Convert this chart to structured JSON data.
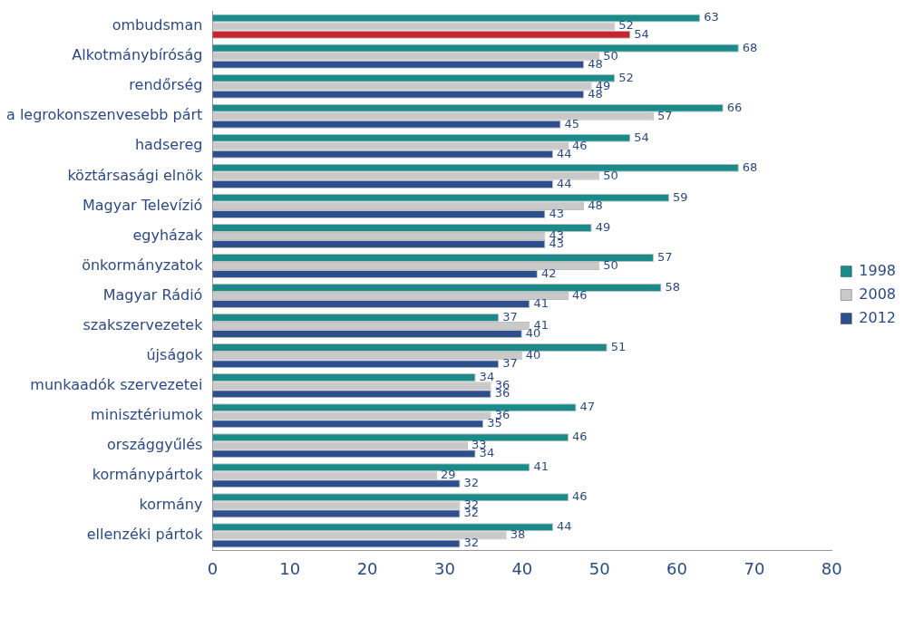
{
  "chart_data": {
    "type": "bar",
    "orientation": "horizontal",
    "categories": [
      "ombudsman",
      "Alkotmánybíróság",
      "rendőrség",
      "a legrokonszenvesebb párt",
      "hadsereg",
      "köztársasági elnök",
      "Magyar Televízió",
      "egyházak",
      "önkormányzatok",
      "Magyar Rádió",
      "szakszervezetek",
      "újságok",
      "munkaadók szervezetei",
      "minisztériumok",
      "országgyűlés",
      "kormánypártok",
      "kormány",
      "ellenzéki pártok"
    ],
    "series": [
      {
        "name": "1998",
        "color": "#1b8b8a",
        "values": [
          63,
          68,
          52,
          66,
          54,
          68,
          59,
          49,
          57,
          58,
          37,
          51,
          34,
          47,
          46,
          41,
          46,
          44
        ]
      },
      {
        "name": "2008",
        "color": "#c9c9c9",
        "values": [
          52,
          50,
          49,
          57,
          46,
          50,
          48,
          43,
          50,
          46,
          41,
          40,
          36,
          36,
          33,
          29,
          32,
          38
        ]
      },
      {
        "name": "2012",
        "color": "#2d4f8e",
        "colors": [
          "#c4262e",
          "#2d4f8e",
          "#2d4f8e",
          "#2d4f8e",
          "#2d4f8e",
          "#2d4f8e",
          "#2d4f8e",
          "#2d4f8e",
          "#2d4f8e",
          "#2d4f8e",
          "#2d4f8e",
          "#2d4f8e",
          "#2d4f8e",
          "#2d4f8e",
          "#2d4f8e",
          "#2d4f8e",
          "#2d4f8e",
          "#2d4f8e"
        ],
        "values": [
          54,
          48,
          48,
          45,
          44,
          44,
          43,
          43,
          42,
          41,
          40,
          37,
          36,
          35,
          34,
          32,
          32,
          32
        ]
      }
    ],
    "xlim": [
      0,
      80
    ],
    "xticks": [
      0,
      10,
      20,
      30,
      40,
      50,
      60,
      70,
      80
    ],
    "grid": false,
    "legend": "right",
    "data_labels": true
  }
}
